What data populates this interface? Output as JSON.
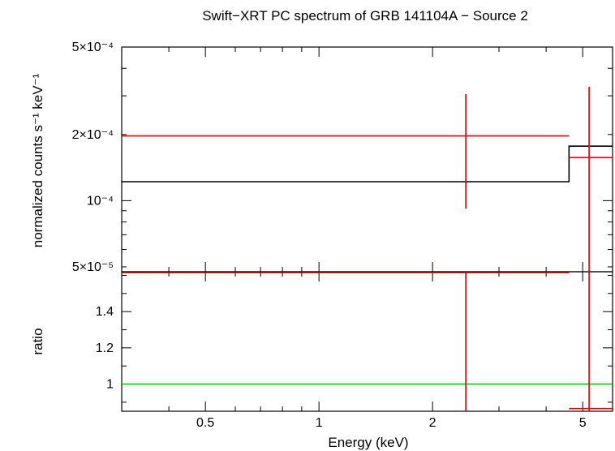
{
  "chart_data": [
    {
      "panel": "spectrum",
      "type": "step",
      "title": "Swift−XRT PC spectrum of GRB 141104A − Source 2",
      "ylabel": "normalized counts s⁻¹ keV⁻¹",
      "xscale": "log",
      "yscale": "log",
      "xlim": [
        0.3,
        6.0
      ],
      "ylim": [
        4.75e-05,
        0.0005
      ],
      "y_ticks": [
        {
          "value": 0.0005,
          "label": "5×10⁻⁴"
        },
        {
          "value": 0.0002,
          "label": "2×10⁻⁴"
        },
        {
          "value": 0.0001,
          "label": "10⁻⁴"
        },
        {
          "value": 5e-05,
          "label": "5×10⁻⁵"
        }
      ],
      "series": [
        {
          "kind": "data",
          "color": "#e00000",
          "points": [
            {
              "x_lo": 0.3,
              "x_hi": 4.6,
              "x": 2.45,
              "y": 0.000197,
              "y_lo": 9.2e-05,
              "y_hi": 0.000305
            },
            {
              "x_lo": 4.6,
              "x_hi": 6.0,
              "x": 5.2,
              "y": 0.000157,
              "y_lo": 4.75e-05,
              "y_hi": 0.00033
            }
          ]
        },
        {
          "kind": "model",
          "color": "#000000",
          "steps": [
            {
              "x_lo": 0.3,
              "x_hi": 4.6,
              "y": 0.000122
            },
            {
              "x_lo": 4.6,
              "x_hi": 6.0,
              "y": 0.000177
            }
          ]
        }
      ]
    },
    {
      "panel": "ratio",
      "type": "scatter",
      "ylabel": "ratio",
      "xlabel": "Energy (keV)",
      "xscale": "log",
      "yscale": "linear",
      "xlim": [
        0.3,
        6.0
      ],
      "ylim": [
        0.85,
        1.62
      ],
      "x_ticks": [
        {
          "value": 0.5,
          "label": "0.5"
        },
        {
          "value": 1,
          "label": "1"
        },
        {
          "value": 2,
          "label": "2"
        },
        {
          "value": 5,
          "label": "5"
        }
      ],
      "y_ticks": [
        {
          "value": 1,
          "label": "1"
        },
        {
          "value": 1.2,
          "label": "1.2"
        },
        {
          "value": 1.4,
          "label": "1.4"
        }
      ],
      "reference_line": {
        "y": 1,
        "color": "#00dd00"
      },
      "series": [
        {
          "kind": "data",
          "color": "#e00000",
          "points": [
            {
              "x_lo": 0.3,
              "x_hi": 4.6,
              "x": 2.45,
              "y": 1.615,
              "y_lo": 0.85,
              "y_hi": 1.62
            },
            {
              "x_lo": 4.6,
              "x_hi": 6.0,
              "x": 5.2,
              "y": 0.865,
              "y_lo": 0.85,
              "y_hi": 1.62
            }
          ]
        }
      ]
    }
  ]
}
